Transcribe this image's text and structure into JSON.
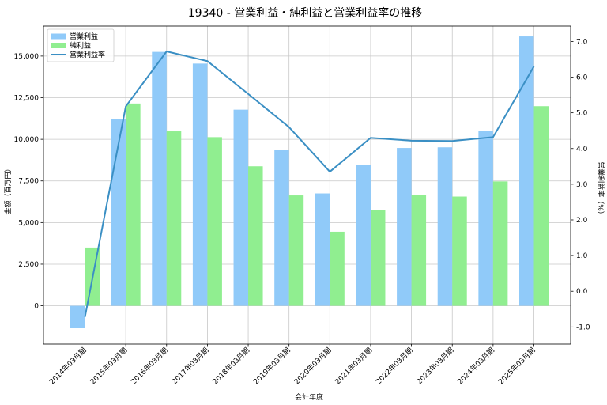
{
  "chart_data": {
    "type": "bar",
    "title": "19340 - 営業利益・純利益と営業利益率の推移",
    "xlabel": "会計年度",
    "ylabel": "金額（百万円）",
    "ylabel_right": "営業利益率（%）",
    "categories": [
      "2014年03月期",
      "2015年03月期",
      "2016年03月期",
      "2017年03月期",
      "2018年03月期",
      "2019年03月期",
      "2020年03月期",
      "2021年03月期",
      "2022年03月期",
      "2023年03月期",
      "2024年03月期",
      "2025年03月期"
    ],
    "series": [
      {
        "name": "営業利益",
        "axis": "left",
        "type": "bar",
        "color": "#90caf9",
        "values": [
          -1350,
          11200,
          15250,
          14550,
          11780,
          9380,
          6750,
          8480,
          9480,
          9520,
          10520,
          16180
        ]
      },
      {
        "name": "純利益",
        "axis": "left",
        "type": "bar",
        "color": "#90ee90",
        "values": [
          3500,
          12150,
          10480,
          10130,
          8380,
          6630,
          4450,
          5730,
          6680,
          6560,
          7470,
          11990
        ]
      },
      {
        "name": "営業利益率",
        "axis": "right",
        "type": "line",
        "color": "#3a8fc4",
        "values": [
          -0.72,
          5.18,
          6.72,
          6.45,
          5.53,
          4.6,
          3.35,
          4.3,
          4.22,
          4.21,
          4.32,
          6.3
        ]
      }
    ],
    "ylim": [
      -2300,
      16800
    ],
    "ylim_right": [
      -1.48,
      7.43
    ],
    "yticks": [
      0,
      2500,
      5000,
      7500,
      10000,
      12500,
      15000
    ],
    "ytick_labels": [
      "0",
      "2,500",
      "5,000",
      "7,500",
      "10,000",
      "12,500",
      "15,000"
    ],
    "yticks_right": [
      -1.0,
      0.0,
      1.0,
      2.0,
      3.0,
      4.0,
      5.0,
      6.0,
      7.0
    ],
    "ytick_labels_right": [
      "-1.0",
      "0.0",
      "1.0",
      "2.0",
      "3.0",
      "4.0",
      "5.0",
      "6.0",
      "7.0"
    ],
    "grid": true,
    "legend_position": "top-left"
  }
}
